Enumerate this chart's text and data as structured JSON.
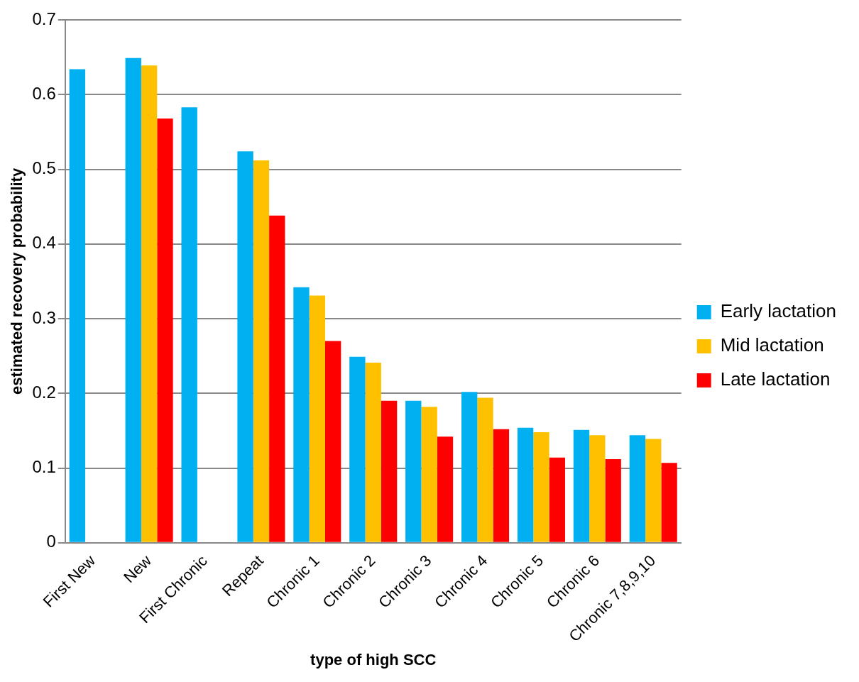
{
  "chart_data": {
    "type": "bar",
    "xlabel": "type of high SCC",
    "ylabel": "estimated recovery probability",
    "categories": [
      "First New",
      "New",
      "First Chronic",
      "Repeat",
      "Chronic 1",
      "Chronic 2",
      "Chronic 3",
      "Chronic 4",
      "Chronic 5",
      "Chronic 6",
      "Chronic 7,8,9,10"
    ],
    "series": [
      {
        "name": "Early lactation",
        "color": "#00b0f0",
        "values": [
          0.634,
          0.649,
          0.583,
          0.524,
          0.342,
          0.249,
          0.19,
          0.202,
          0.154,
          0.151,
          0.144
        ]
      },
      {
        "name": "Mid lactation",
        "color": "#ffc000",
        "values": [
          null,
          0.639,
          null,
          0.512,
          0.331,
          0.241,
          0.182,
          0.194,
          0.148,
          0.144,
          0.139
        ]
      },
      {
        "name": "Late lactation",
        "color": "#ff0000",
        "values": [
          null,
          0.568,
          null,
          0.438,
          0.27,
          0.19,
          0.142,
          0.152,
          0.114,
          0.112,
          0.107
        ]
      }
    ],
    "ylim": [
      0,
      0.7
    ],
    "yticks": [
      0,
      0.1,
      0.2,
      0.3,
      0.4,
      0.5,
      0.6,
      0.7
    ],
    "grid": "y",
    "legend": "right"
  }
}
